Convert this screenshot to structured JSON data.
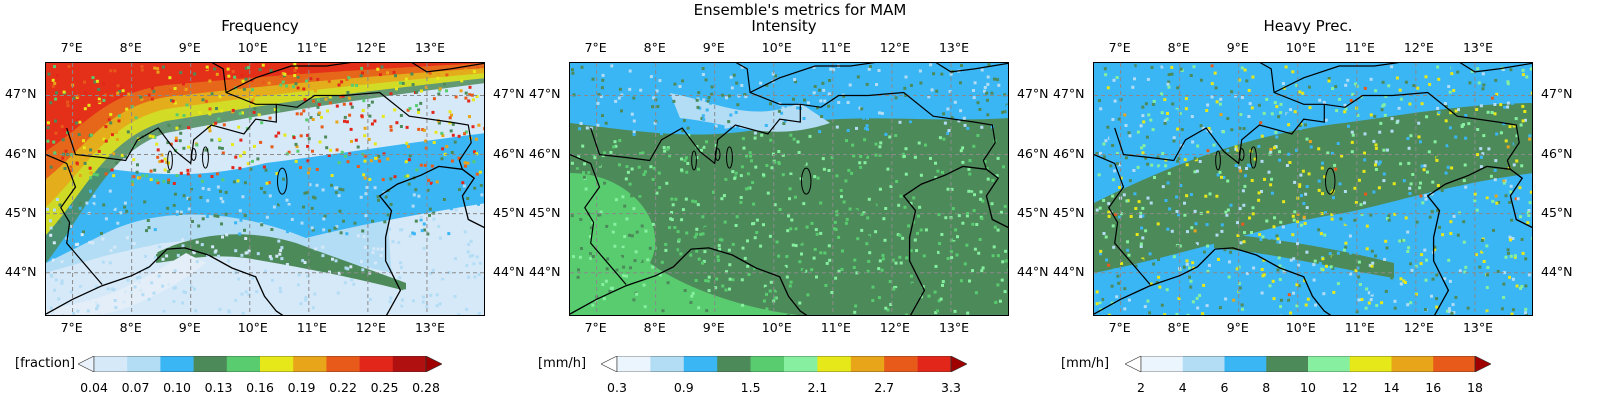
{
  "suptitle": "Ensemble's metrics for MAM",
  "lon_labels": [
    "7°E",
    "8°E",
    "9°E",
    "10°E",
    "11°E",
    "12°E",
    "13°E"
  ],
  "lat_labels": [
    "47°N",
    "46°N",
    "45°N",
    "44°N"
  ],
  "panels": [
    {
      "title": "Frequency",
      "units": "[fraction]",
      "cbar_ticks": [
        "0.04",
        "0.07",
        "0.10",
        "0.13",
        "0.16",
        "0.19",
        "0.22",
        "0.25",
        "0.28"
      ],
      "colors": [
        "#d6e9f8",
        "#b3dcf5",
        "#3bb6f5",
        "#4d8a5a",
        "#58cc6e",
        "#e6e81a",
        "#e8a51a",
        "#e85a1a",
        "#e3261a",
        "#b01010"
      ],
      "under": "#eaf3fb",
      "over": "#a00000"
    },
    {
      "title": "Intensity",
      "units": "[mm/h]",
      "cbar_ticks": [
        "0.3",
        "0.9",
        "1.5",
        "2.1",
        "2.7",
        "3.3"
      ],
      "colors": [
        "#eaf5fd",
        "#b3dcf5",
        "#3bb6f5",
        "#4d8a5a",
        "#58cc6e",
        "#86f0a0",
        "#e6e81a",
        "#e8a51a",
        "#e85a1a",
        "#e3261a"
      ],
      "under": "#ffffff",
      "over": "#a00000"
    },
    {
      "title": "Heavy Prec.",
      "units": "[mm/h]",
      "cbar_ticks": [
        "2",
        "4",
        "6",
        "8",
        "10",
        "12",
        "14",
        "16",
        "18"
      ],
      "colors": [
        "#eaf5fd",
        "#b3dcf5",
        "#3bb6f5",
        "#4d8a5a",
        "#86f0a0",
        "#e6e81a",
        "#e8a51a",
        "#e85a1a"
      ],
      "under": "#ffffff",
      "over": "#a00000"
    }
  ]
}
